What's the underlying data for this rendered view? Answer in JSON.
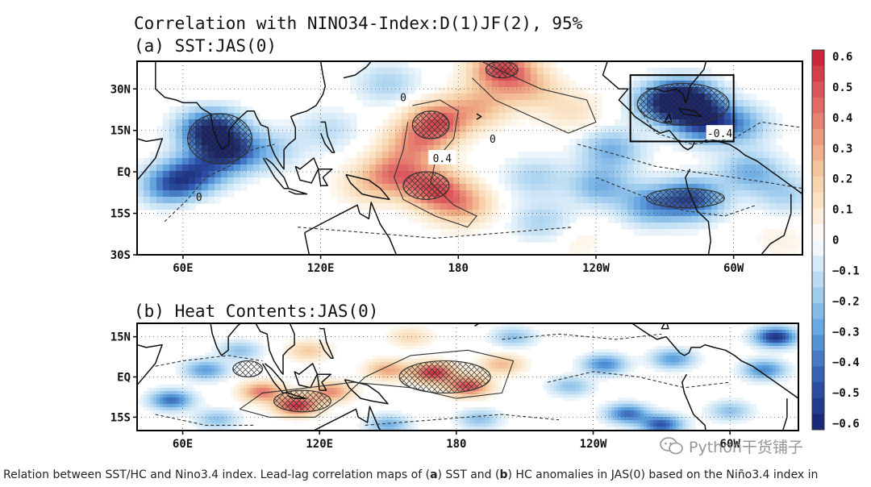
{
  "figure": {
    "title": "Correlation with NINO34-Index:D(1)JF(2), 95%",
    "colors": {
      "land": "#ffffff",
      "coast": "#111111",
      "contour": "#333333",
      "hatch": "#333333",
      "box": "#000000"
    }
  },
  "chart_data": [
    {
      "type": "heatmap",
      "title": "(a) SST:JAS(0)",
      "x_tick_labels": [
        "60E",
        "120E",
        "180",
        "120W",
        "60W"
      ],
      "y_tick_labels": [
        "30N",
        "15N",
        "EQ",
        "15S",
        "30S"
      ],
      "x_ticks_lon": [
        60,
        120,
        180,
        240,
        300
      ],
      "y_ticks_lat": [
        30,
        15,
        0,
        -15,
        -30
      ],
      "xlim_lon": [
        40,
        330
      ],
      "ylim_lat": [
        -30,
        40
      ],
      "contour_labels": [
        "0.4",
        "0",
        "0",
        "0",
        "-0.4"
      ],
      "significance": "95%",
      "box_region": {
        "lon": [
          255,
          300
        ],
        "lat": [
          11,
          35
        ]
      },
      "features": [
        {
          "lon": 72,
          "lat": 15,
          "value": -0.6
        },
        {
          "lon": 80,
          "lat": 7,
          "value": -0.45
        },
        {
          "lon": 55,
          "lat": -5,
          "value": -0.4
        },
        {
          "lon": 66,
          "lat": 0,
          "value": -0.35
        },
        {
          "lon": 64,
          "lat": -14,
          "value": 0.05
        },
        {
          "lon": 98,
          "lat": 8,
          "value": -0.15
        },
        {
          "lon": 122,
          "lat": 15,
          "value": -0.12
        },
        {
          "lon": 148,
          "lat": 32,
          "value": -0.15
        },
        {
          "lon": 170,
          "lat": 18,
          "value": 0.45
        },
        {
          "lon": 160,
          "lat": 10,
          "value": 0.3
        },
        {
          "lon": 152,
          "lat": 0,
          "value": 0.35
        },
        {
          "lon": 168,
          "lat": -6,
          "value": 0.42
        },
        {
          "lon": 180,
          "lat": -12,
          "value": 0.3
        },
        {
          "lon": 140,
          "lat": -5,
          "value": 0.15
        },
        {
          "lon": 198,
          "lat": 37,
          "value": 0.5
        },
        {
          "lon": 210,
          "lat": 30,
          "value": 0.2
        },
        {
          "lon": 188,
          "lat": 24,
          "value": 0.25
        },
        {
          "lon": 228,
          "lat": 22,
          "value": 0.12
        },
        {
          "lon": 245,
          "lat": 8,
          "value": -0.25
        },
        {
          "lon": 268,
          "lat": 25,
          "value": -0.4
        },
        {
          "lon": 278,
          "lat": 26,
          "value": -0.55
        },
        {
          "lon": 285,
          "lat": 18,
          "value": -0.45
        },
        {
          "lon": 300,
          "lat": 17,
          "value": -0.25
        },
        {
          "lon": 280,
          "lat": -10,
          "value": -0.45
        },
        {
          "lon": 262,
          "lat": -12,
          "value": -0.3
        },
        {
          "lon": 240,
          "lat": -5,
          "value": -0.25
        },
        {
          "lon": 212,
          "lat": -2,
          "value": -0.15
        },
        {
          "lon": 215,
          "lat": -18,
          "value": -0.15
        },
        {
          "lon": 305,
          "lat": 0,
          "value": -0.25
        },
        {
          "lon": 320,
          "lat": -8,
          "value": -0.15
        },
        {
          "lon": 95,
          "lat": -22,
          "value": 0.02
        },
        {
          "lon": 230,
          "lat": -25,
          "value": 0.05
        },
        {
          "lon": 318,
          "lat": -25,
          "value": 0.05
        }
      ],
      "hatched_areas": [
        {
          "lon": [
            62,
            90
          ],
          "lat": [
            3,
            21
          ]
        },
        {
          "lon": [
            160,
            176
          ],
          "lat": [
            12,
            22
          ]
        },
        {
          "lon": [
            156,
            176
          ],
          "lat": [
            -10,
            0
          ]
        },
        {
          "lon": [
            192,
            206
          ],
          "lat": [
            34,
            40
          ]
        },
        {
          "lon": [
            258,
            298
          ],
          "lat": [
            17,
            32
          ]
        },
        {
          "lon": [
            262,
            296
          ],
          "lat": [
            -13,
            -6
          ]
        }
      ]
    },
    {
      "type": "heatmap",
      "title": "(b) Heat Contents:JAS(0)",
      "x_tick_labels": [
        "60E",
        "120E",
        "180",
        "120W",
        "60W"
      ],
      "y_tick_labels": [
        "15N",
        "EQ",
        "15S"
      ],
      "x_ticks_lon": [
        60,
        120,
        180,
        240,
        300
      ],
      "y_ticks_lat": [
        15,
        0,
        -15
      ],
      "xlim_lon": [
        40,
        330
      ],
      "ylim_lat": [
        -20,
        20
      ],
      "significance": "95%",
      "features": [
        {
          "lon": 110,
          "lat": -10,
          "value": 0.55
        },
        {
          "lon": 95,
          "lat": -5,
          "value": 0.4
        },
        {
          "lon": 125,
          "lat": -5,
          "value": 0.35
        },
        {
          "lon": 150,
          "lat": 3,
          "value": 0.3
        },
        {
          "lon": 170,
          "lat": 2,
          "value": 0.55
        },
        {
          "lon": 185,
          "lat": -3,
          "value": 0.5
        },
        {
          "lon": 200,
          "lat": 5,
          "value": 0.25
        },
        {
          "lon": 115,
          "lat": 10,
          "value": 0.2
        },
        {
          "lon": 160,
          "lat": 15,
          "value": 0.15
        },
        {
          "lon": 55,
          "lat": -8,
          "value": -0.4
        },
        {
          "lon": 70,
          "lat": 3,
          "value": -0.3
        },
        {
          "lon": 85,
          "lat": 10,
          "value": -0.2
        },
        {
          "lon": 75,
          "lat": -15,
          "value": -0.2
        },
        {
          "lon": 150,
          "lat": -17,
          "value": -0.25
        },
        {
          "lon": 190,
          "lat": -15,
          "value": -0.2
        },
        {
          "lon": 205,
          "lat": 15,
          "value": -0.2
        },
        {
          "lon": 245,
          "lat": 5,
          "value": -0.35
        },
        {
          "lon": 255,
          "lat": -13,
          "value": -0.4
        },
        {
          "lon": 270,
          "lat": -17,
          "value": -0.45
        },
        {
          "lon": 275,
          "lat": 7,
          "value": -0.3
        },
        {
          "lon": 320,
          "lat": 15,
          "value": -0.55
        },
        {
          "lon": 315,
          "lat": 3,
          "value": -0.35
        },
        {
          "lon": 230,
          "lat": -3,
          "value": -0.2
        },
        {
          "lon": 300,
          "lat": -12,
          "value": -0.2
        }
      ],
      "hatched_areas": [
        {
          "lon": [
            100,
            125
          ],
          "lat": [
            -13,
            -5
          ]
        },
        {
          "lon": [
            155,
            195
          ],
          "lat": [
            -6,
            6
          ]
        },
        {
          "lon": [
            82,
            95
          ],
          "lat": [
            0,
            6
          ]
        }
      ]
    }
  ],
  "colorbar": {
    "tick_labels": [
      "0.6",
      "0.5",
      "0.4",
      "0.3",
      "0.2",
      "0.1",
      "0",
      "−0.1",
      "−0.2",
      "−0.3",
      "−0.4",
      "−0.5",
      "−0.6"
    ],
    "min": -0.6,
    "max": 0.6
  },
  "caption": {
    "prefix": "Relation between SST/HC and Nino3.4 index. Lead-lag correlation maps of (",
    "a": "a",
    "middle1": ") SST and (",
    "b": "b",
    "suffix": ") HC anomalies in JAS(0) based on the Niño3.4 index in"
  },
  "watermark": {
    "text": "Python干货铺子"
  }
}
